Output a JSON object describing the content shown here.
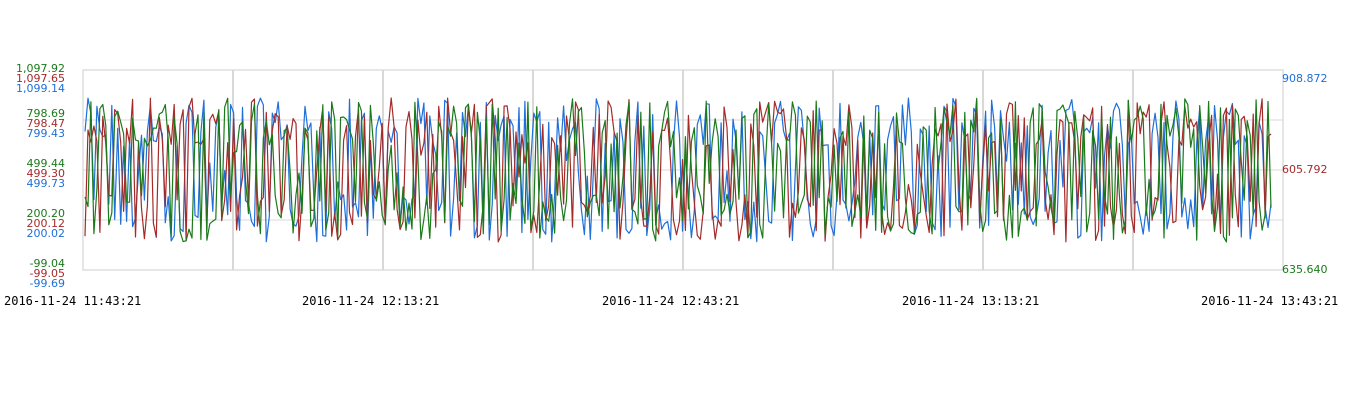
{
  "chart_data": {
    "type": "line",
    "title": "",
    "xlabel": "",
    "ylabel": "",
    "grid": true,
    "legend": "none",
    "x_range": [
      "2016-11-24 11:43:21",
      "2016-11-24 13:43:21"
    ],
    "x_tick_labels": [
      "2016-11-24 11:43:21",
      "2016-11-24 12:13:21",
      "2016-11-24 12:43:21",
      "2016-11-24 13:13:21",
      "2016-11-24 13:43:21"
    ],
    "left_ticks": [
      {
        "label": "1,097.92",
        "color": "#1a7a1a"
      },
      {
        "label": "1,097.65",
        "color": "#a52a2a"
      },
      {
        "label": "1,099.14",
        "color": "#1e6fd9"
      },
      {
        "label": "798.69",
        "color": "#1a7a1a"
      },
      {
        "label": "798.47",
        "color": "#a52a2a"
      },
      {
        "label": "799.43",
        "color": "#1e6fd9"
      },
      {
        "label": "499.44",
        "color": "#1a7a1a"
      },
      {
        "label": "499.30",
        "color": "#a52a2a"
      },
      {
        "label": "499.73",
        "color": "#1e6fd9"
      },
      {
        "label": "200.20",
        "color": "#1a7a1a"
      },
      {
        "label": "200.12",
        "color": "#a52a2a"
      },
      {
        "label": "200.02",
        "color": "#1e6fd9"
      },
      {
        "label": "-99.04",
        "color": "#1a7a1a"
      },
      {
        "label": "-99.05",
        "color": "#a52a2a"
      },
      {
        "label": "-99.69",
        "color": "#1e6fd9"
      }
    ],
    "right_ticks": [
      {
        "label": "908.872",
        "color": "#1e6fd9"
      },
      {
        "label": "605.792",
        "color": "#a52a2a"
      },
      {
        "label": "635.640",
        "color": "#1a7a1a"
      }
    ],
    "series": [
      {
        "color": "#1e6fd9",
        "y_range": [
          -99.69,
          1099.14
        ]
      },
      {
        "color": "#a52a2a",
        "y_range": [
          -99.05,
          1097.65
        ]
      },
      {
        "color": "#1a7a1a",
        "y_range": [
          -99.04,
          1097.92
        ]
      }
    ],
    "points_per_series": 400
  }
}
